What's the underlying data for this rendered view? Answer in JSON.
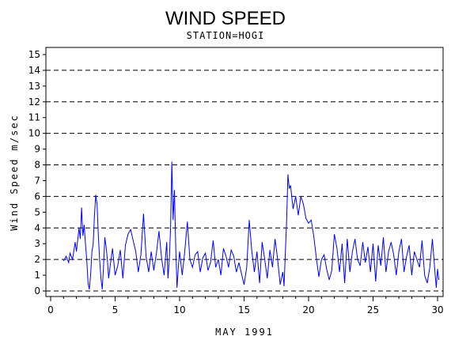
{
  "chart_data": {
    "type": "line",
    "title": "WIND SPEED",
    "subtitle": "STATION=HOGI",
    "xlabel": "MAY 1991",
    "ylabel": "Wind Speed m/sec",
    "xlim": [
      0,
      30.4
    ],
    "ylim": [
      0,
      15.4
    ],
    "xticks": [
      0,
      5,
      10,
      15,
      20,
      25,
      30
    ],
    "yticks": [
      0,
      1,
      2,
      3,
      4,
      5,
      6,
      7,
      8,
      9,
      10,
      11,
      12,
      13,
      14,
      15
    ],
    "reference_lines_y": [
      0,
      2,
      4,
      6,
      8,
      10,
      12,
      14
    ],
    "grid": "dashed horizontal reference lines",
    "line_color": "#0000ff",
    "series": [
      {
        "x": [
          1.0,
          1.2,
          1.4,
          1.5,
          1.7,
          1.9,
          2.0,
          2.2,
          2.3,
          2.4,
          2.5,
          2.6,
          2.7,
          2.8,
          2.9,
          3.0,
          3.1,
          3.2,
          3.3,
          3.4,
          3.5,
          3.6,
          3.7,
          3.8,
          3.9,
          4.0,
          4.1,
          4.2,
          4.3,
          4.4,
          4.5,
          4.6,
          4.8,
          5.0,
          5.2,
          5.4,
          5.6,
          5.8,
          6.0,
          6.2,
          6.4,
          6.6,
          6.8,
          7.0,
          7.2,
          7.4,
          7.6,
          7.8,
          8.0,
          8.2,
          8.4,
          8.6,
          8.8,
          9.0,
          9.1,
          9.2,
          9.3,
          9.4,
          9.5,
          9.6,
          9.7,
          9.8,
          9.9,
          10.0,
          10.2,
          10.4,
          10.6,
          10.8,
          11.0,
          11.2,
          11.4,
          11.6,
          11.8,
          12.0,
          12.2,
          12.4,
          12.6,
          12.8,
          13.0,
          13.2,
          13.4,
          13.6,
          13.8,
          14.0,
          14.2,
          14.4,
          14.6,
          14.8,
          15.0,
          15.2,
          15.4,
          15.6,
          15.8,
          16.0,
          16.2,
          16.4,
          16.6,
          16.8,
          17.0,
          17.2,
          17.4,
          17.6,
          17.8,
          18.0,
          18.1,
          18.2,
          18.3,
          18.4,
          18.5,
          18.6,
          18.8,
          19.0,
          19.2,
          19.4,
          19.6,
          19.8,
          20.0,
          20.2,
          20.4,
          20.6,
          20.8,
          21.0,
          21.2,
          21.4,
          21.6,
          21.8,
          22.0,
          22.2,
          22.4,
          22.6,
          22.8,
          23.0,
          23.2,
          23.4,
          23.6,
          23.8,
          24.0,
          24.2,
          24.4,
          24.6,
          24.8,
          25.0,
          25.2,
          25.4,
          25.6,
          25.8,
          26.0,
          26.2,
          26.4,
          26.6,
          26.8,
          27.0,
          27.2,
          27.4,
          27.6,
          27.8,
          28.0,
          28.2,
          28.4,
          28.6,
          28.8,
          29.0,
          29.2,
          29.4,
          29.6,
          29.8,
          29.9,
          30.0,
          30.1
        ],
        "y": [
          1.9,
          2.2,
          1.8,
          2.4,
          2.0,
          3.1,
          2.5,
          4.0,
          3.3,
          5.3,
          3.5,
          4.2,
          3.0,
          2.0,
          0.5,
          0.1,
          1.0,
          2.5,
          3.0,
          4.8,
          6.1,
          5.5,
          3.5,
          2.0,
          0.8,
          0.1,
          1.5,
          3.4,
          2.8,
          2.0,
          0.8,
          1.5,
          2.7,
          1.0,
          1.6,
          2.6,
          0.8,
          2.9,
          3.6,
          3.9,
          3.2,
          2.5,
          1.2,
          2.3,
          4.9,
          2.2,
          1.2,
          2.5,
          1.3,
          2.4,
          3.8,
          2.1,
          1.0,
          3.1,
          0.8,
          2.0,
          4.0,
          8.2,
          4.5,
          6.4,
          2.8,
          0.2,
          1.5,
          2.5,
          1.0,
          2.5,
          4.4,
          2.0,
          1.5,
          2.3,
          2.5,
          1.2,
          2.1,
          2.4,
          1.3,
          1.8,
          3.2,
          1.5,
          2.0,
          1.0,
          2.7,
          2.2,
          1.5,
          2.6,
          2.2,
          1.2,
          1.8,
          1.1,
          0.4,
          1.5,
          4.5,
          2.5,
          1.2,
          2.5,
          0.5,
          3.1,
          2.0,
          0.8,
          2.6,
          1.5,
          3.3,
          2.0,
          0.4,
          1.2,
          0.3,
          2.5,
          4.5,
          7.4,
          6.5,
          6.7,
          5.2,
          6.0,
          4.8,
          6.0,
          5.5,
          4.6,
          4.3,
          4.5,
          3.5,
          2.1,
          0.9,
          2.0,
          2.3,
          1.4,
          0.7,
          1.3,
          3.6,
          2.7,
          1.2,
          3.0,
          0.5,
          3.3,
          1.2,
          2.5,
          3.3,
          2.0,
          1.6,
          3.1,
          1.8,
          2.8,
          1.2,
          3.0,
          0.6,
          2.9,
          1.6,
          3.4,
          1.2,
          2.5,
          3.1,
          2.3,
          1.0,
          2.5,
          3.3,
          1.2,
          2.2,
          2.9,
          1.0,
          2.5,
          2.0,
          1.5,
          3.2,
          1.0,
          0.5,
          1.5,
          3.3,
          1.2,
          0.2,
          1.4,
          0.7
        ]
      }
    ]
  }
}
